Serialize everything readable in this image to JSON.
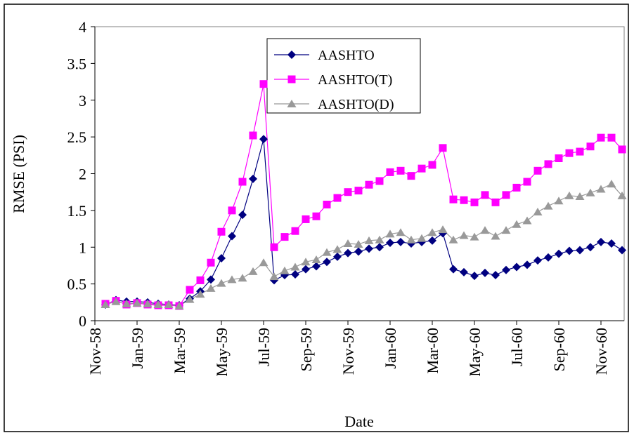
{
  "chart_data": {
    "type": "line",
    "x_label": "Date",
    "y_label": "RMSE (PSI)",
    "categories": [
      "Nov-58",
      null,
      null,
      null,
      "Jan-59",
      null,
      null,
      null,
      "Mar-59",
      null,
      null,
      null,
      "May-59",
      null,
      null,
      null,
      "Jul-59",
      null,
      null,
      null,
      "Sep-59",
      null,
      null,
      null,
      "Nov-59",
      null,
      null,
      null,
      "Jan-60",
      null,
      null,
      null,
      "Mar-60",
      null,
      null,
      null,
      "May-60",
      null,
      null,
      null,
      "Jul-60",
      null,
      null,
      null,
      "Sep-60",
      null,
      null,
      null,
      "Nov-60",
      null,
      null
    ],
    "series": [
      {
        "name": "AASHTO",
        "color": "#000080",
        "marker": "diamond",
        "values": [
          null,
          0.22,
          0.28,
          0.26,
          0.26,
          0.25,
          0.23,
          0.22,
          0.21,
          0.3,
          0.4,
          0.56,
          0.85,
          1.15,
          1.44,
          1.93,
          2.47,
          0.55,
          0.62,
          0.63,
          0.7,
          0.74,
          0.8,
          0.87,
          0.92,
          0.94,
          0.98,
          1.0,
          1.06,
          1.07,
          1.05,
          1.07,
          1.09,
          1.19,
          0.7,
          0.66,
          0.61,
          0.65,
          0.62,
          0.69,
          0.73,
          0.76,
          0.82,
          0.86,
          0.91,
          0.95,
          0.96,
          1.0,
          1.07,
          1.05,
          0.96
        ]
      },
      {
        "name": "AASHTO(T)",
        "color": "#ff00ff",
        "marker": "square",
        "values": [
          null,
          0.23,
          0.27,
          0.22,
          0.24,
          0.22,
          0.21,
          0.21,
          0.2,
          0.42,
          0.55,
          0.79,
          1.21,
          1.5,
          1.89,
          2.52,
          3.22,
          1.0,
          1.14,
          1.22,
          1.38,
          1.42,
          1.58,
          1.67,
          1.75,
          1.77,
          1.85,
          1.9,
          2.02,
          2.04,
          1.97,
          2.07,
          2.12,
          2.35,
          1.65,
          1.64,
          1.61,
          1.71,
          1.61,
          1.71,
          1.81,
          1.89,
          2.04,
          2.13,
          2.21,
          2.28,
          2.3,
          2.37,
          2.49,
          2.49,
          2.33
        ]
      },
      {
        "name": "AASHTO(D)",
        "color": "#999999",
        "marker": "triangle",
        "values": [
          null,
          0.22,
          0.26,
          0.23,
          0.24,
          0.23,
          0.22,
          0.22,
          0.2,
          0.29,
          0.36,
          0.44,
          0.51,
          0.56,
          0.58,
          0.67,
          0.79,
          0.6,
          0.68,
          0.73,
          0.8,
          0.83,
          0.93,
          0.97,
          1.05,
          1.04,
          1.09,
          1.1,
          1.18,
          1.2,
          1.1,
          1.12,
          1.2,
          1.24,
          1.1,
          1.16,
          1.14,
          1.23,
          1.15,
          1.23,
          1.31,
          1.36,
          1.48,
          1.56,
          1.63,
          1.7,
          1.69,
          1.74,
          1.79,
          1.86,
          1.7
        ]
      }
    ],
    "ylim": [
      0,
      4
    ],
    "yticks": [
      0,
      0.5,
      1,
      1.5,
      2,
      2.5,
      3,
      3.5,
      4
    ],
    "grid": false
  }
}
